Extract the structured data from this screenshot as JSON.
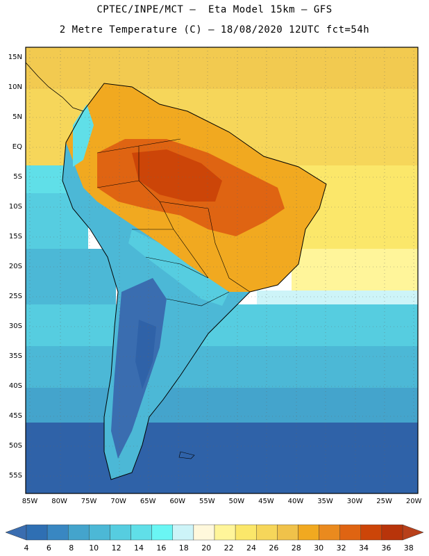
{
  "title_line1": "CPTEC/INPE/MCT –  Eta Model 15km – GFS",
  "title_line2": "2 Metre Temperature (C) – 18/08/2020 12UTC fct=54h",
  "lat_labels": [
    "15N",
    "10N",
    "5N",
    "EQ",
    "5S",
    "10S",
    "15S",
    "20S",
    "25S",
    "30S",
    "35S",
    "40S",
    "45S",
    "50S",
    "55S"
  ],
  "lon_labels": [
    "85W",
    "80W",
    "75W",
    "70W",
    "65W",
    "60W",
    "55W",
    "50W",
    "45W",
    "40W",
    "35W",
    "30W",
    "25W",
    "20W"
  ],
  "colorbar": {
    "ticks": [
      "4",
      "6",
      "8",
      "10",
      "12",
      "14",
      "16",
      "18",
      "20",
      "22",
      "24",
      "26",
      "28",
      "30",
      "32",
      "34",
      "36",
      "38"
    ],
    "colors": [
      "#3a6db0",
      "#2f6fb3",
      "#3987c2",
      "#44a4cc",
      "#4cb8d6",
      "#56cde0",
      "#60dfe8",
      "#6af6f4",
      "#cdf4f8",
      "#fff8dc",
      "#fff59a",
      "#fbe76a",
      "#f6d65a",
      "#f0c24a",
      "#f1a920",
      "#ea8a1e",
      "#df6412",
      "#cc4508",
      "#b8340a",
      "#b8401a"
    ]
  }
}
